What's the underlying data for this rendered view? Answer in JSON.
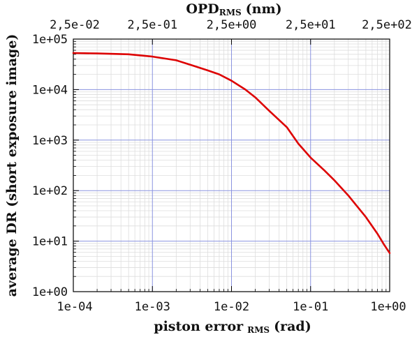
{
  "chart_data": {
    "type": "line",
    "title": "",
    "xlabel": "piston error",
    "xlabel_sub": "RMS",
    "xlabel_unit": "(rad)",
    "ylabel": "average DR (short exposure image)",
    "top_xlabel": "OPD",
    "top_xlabel_sub": "RMS",
    "top_xlabel_unit": "(nm)",
    "xscale": "log",
    "yscale": "log",
    "xlim": [
      0.0001,
      1
    ],
    "ylim": [
      1,
      100000
    ],
    "x_ticks": [
      0.0001,
      0.001,
      0.01,
      0.1,
      1
    ],
    "x_tick_labels": [
      "1e-04",
      "1e-03",
      "1e-02",
      "1e-01",
      "1e+00"
    ],
    "y_ticks": [
      1,
      10,
      100,
      1000,
      10000,
      100000
    ],
    "y_tick_labels": [
      "1e+00",
      "1e+01",
      "1e+02",
      "1e+03",
      "1e+04",
      "1e+05"
    ],
    "top_x_ticks": [
      0.025,
      0.25,
      2.5,
      25,
      250
    ],
    "top_x_tick_labels": [
      "2,5e-02",
      "2,5e-01",
      "2,5e+00",
      "2,5e+01",
      "2,5e+02"
    ],
    "grid": true,
    "series": [
      {
        "name": "average DR",
        "color": "#dd0000",
        "x": [
          0.0001,
          0.0002,
          0.0005,
          0.001,
          0.002,
          0.003,
          0.005,
          0.007,
          0.01,
          0.015,
          0.02,
          0.03,
          0.05,
          0.07,
          0.1,
          0.15,
          0.2,
          0.3,
          0.5,
          0.7,
          0.85,
          1.0
        ],
        "y": [
          53000,
          52000,
          50000,
          45000,
          38000,
          31000,
          24000,
          20000,
          15000,
          10000,
          7000,
          3800,
          1800,
          850,
          450,
          250,
          160,
          80,
          30,
          14,
          8.5,
          5.8
        ]
      }
    ]
  },
  "colors": {
    "grid_major": "#8a93e0",
    "grid_minor": "#dddddd",
    "axis": "#000000"
  }
}
